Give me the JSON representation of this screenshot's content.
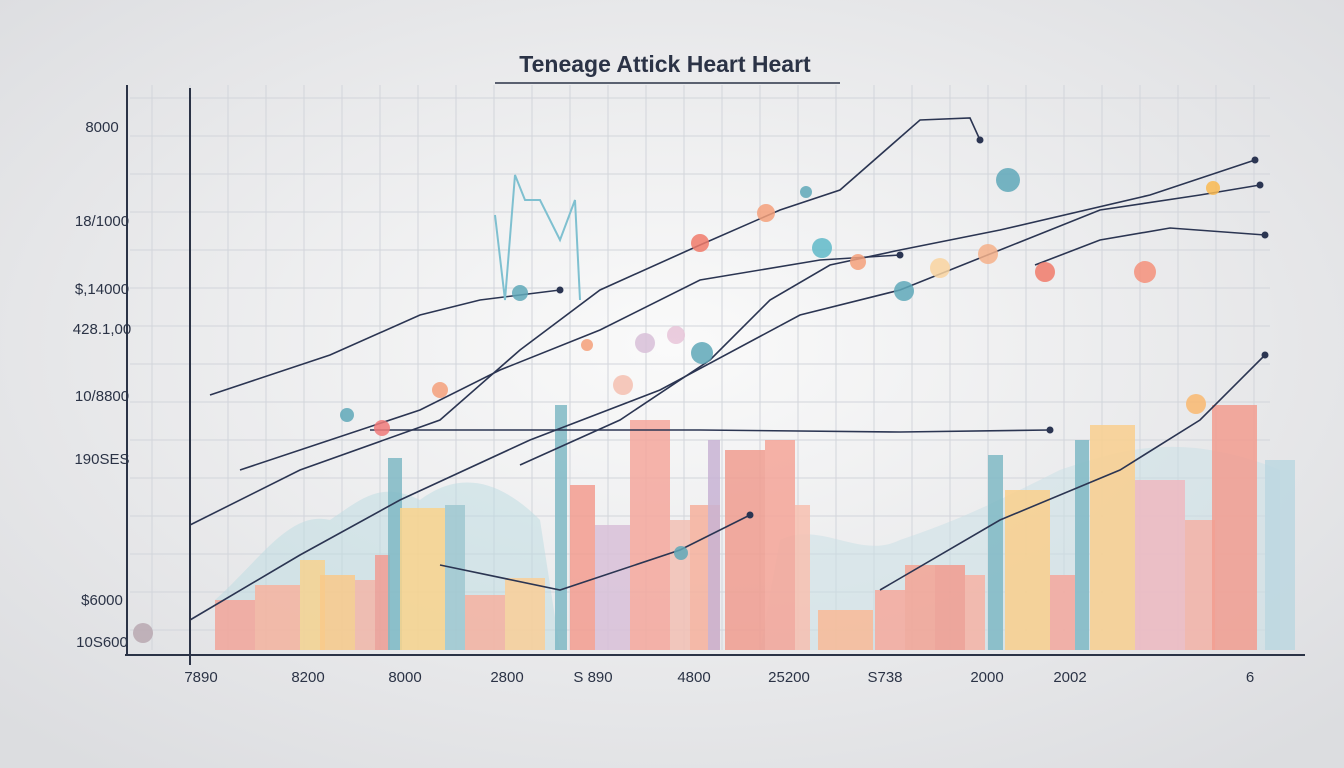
{
  "title": "Teneage Attick Heart Heart",
  "y_labels": [
    "8000",
    "18/1000",
    "$,14000",
    "428.1,00",
    "10/8800",
    "190SES",
    "$6000",
    "10S600"
  ],
  "x_labels": [
    "7890",
    "8200",
    "8000",
    "2800",
    "S 890",
    "4800",
    "25200",
    "S738",
    "2000",
    "2002",
    "6"
  ]
}
